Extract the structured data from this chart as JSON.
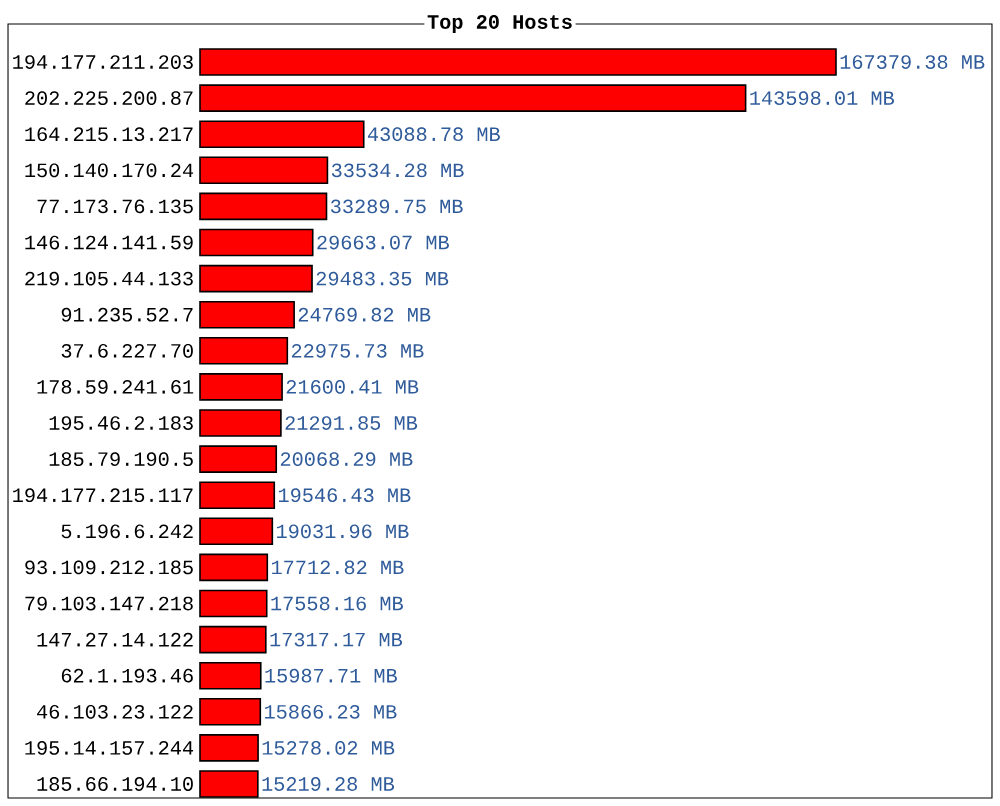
{
  "chart_data": {
    "type": "bar",
    "orientation": "horizontal",
    "title": "Top 20 Hosts",
    "categories": [
      "194.177.211.203",
      "202.225.200.87",
      "164.215.13.217",
      "150.140.170.24",
      "77.173.76.135",
      "146.124.141.59",
      "219.105.44.133",
      "91.235.52.7",
      "37.6.227.70",
      "178.59.241.61",
      "195.46.2.183",
      "185.79.190.5",
      "194.177.215.117",
      "5.196.6.242",
      "93.109.212.185",
      "79.103.147.218",
      "147.27.14.122",
      "62.1.193.46",
      "46.103.23.122",
      "195.14.157.244",
      "185.66.194.10"
    ],
    "values": [
      167379.38,
      143598.01,
      43088.78,
      33534.28,
      33289.75,
      29663.07,
      29483.35,
      24769.82,
      22975.73,
      21600.41,
      21291.85,
      20068.29,
      19546.43,
      19031.96,
      17712.82,
      17558.16,
      17317.17,
      15987.71,
      15866.23,
      15278.02,
      15219.28
    ],
    "value_labels": [
      "167379.38 MB",
      "143598.01 MB",
      "43088.78 MB",
      "33534.28 MB",
      "33289.75 MB",
      "29663.07 MB",
      "29483.35 MB",
      "24769.82 MB",
      "22975.73 MB",
      "21600.41 MB",
      "21291.85 MB",
      "20068.29 MB",
      "19546.43 MB",
      "19031.96 MB",
      "17712.82 MB",
      "17558.16 MB",
      "17317.17 MB",
      "15987.71 MB",
      "15866.23 MB",
      "15278.02 MB",
      "15219.28 MB"
    ],
    "color": "#ff0000"
  }
}
